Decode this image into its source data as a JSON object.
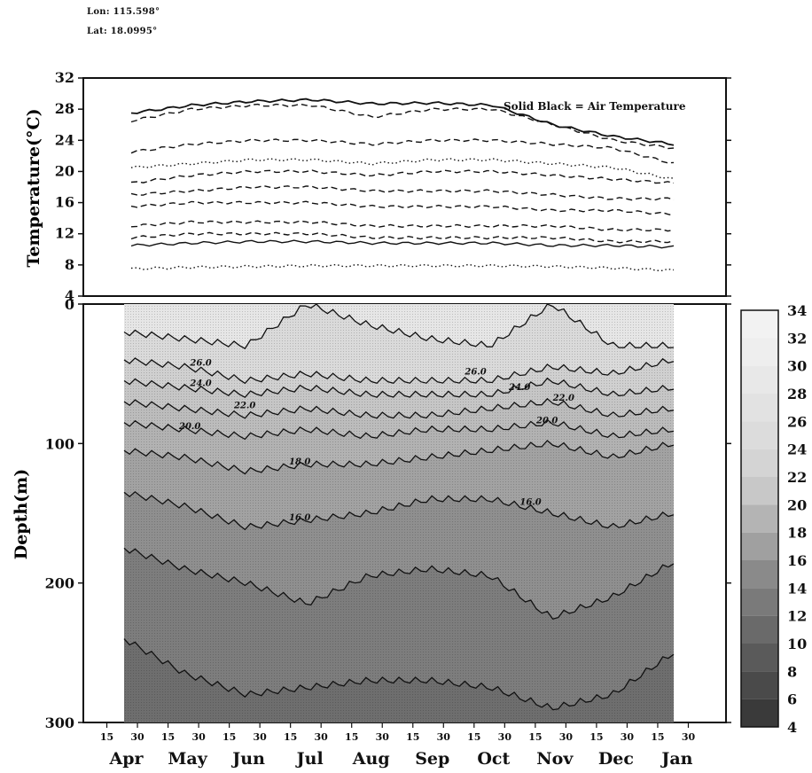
{
  "header": {
    "lon": "Lon: 115.598°",
    "lat": "Lat: 18.0995°"
  },
  "chart_data": [
    {
      "type": "line",
      "panel": "top",
      "ylabel": "Temperature(°C)",
      "yticks": [
        4,
        8,
        12,
        16,
        20,
        24,
        28,
        32
      ],
      "ylim": [
        4,
        32
      ],
      "annotation": "Solid Black = Air Temperature",
      "x_months": [
        "Apr",
        "May",
        "Jun",
        "Jul",
        "Aug",
        "Sep",
        "Oct",
        "Nov",
        "Dec",
        "Jan"
      ],
      "series": [
        {
          "style": "solid",
          "values": [
            27.5,
            28.5,
            29.0,
            29.2,
            28.7,
            28.8,
            28.5,
            26.0,
            24.5,
            23.5
          ]
        },
        {
          "style": "dashed",
          "values": [
            26.5,
            28.0,
            28.5,
            28.5,
            27.0,
            28.0,
            28.0,
            26.0,
            24.0,
            23.0
          ]
        },
        {
          "style": "dashed",
          "values": [
            22.5,
            23.5,
            24.0,
            24.0,
            23.5,
            24.0,
            24.0,
            23.5,
            23.0,
            21.0
          ]
        },
        {
          "style": "dotted",
          "values": [
            20.5,
            21.0,
            21.5,
            21.5,
            21.0,
            21.5,
            21.5,
            21.0,
            20.5,
            19.0
          ]
        },
        {
          "style": "dashed",
          "values": [
            18.5,
            19.5,
            20.0,
            20.0,
            19.5,
            20.0,
            20.0,
            19.5,
            19.0,
            18.5
          ]
        },
        {
          "style": "dashed",
          "values": [
            17.0,
            17.5,
            18.0,
            18.0,
            17.5,
            17.5,
            17.5,
            17.0,
            16.5,
            16.5
          ]
        },
        {
          "style": "dashed",
          "values": [
            15.5,
            16.0,
            16.0,
            16.0,
            15.5,
            15.5,
            15.5,
            15.0,
            15.0,
            14.5
          ]
        },
        {
          "style": "dashed",
          "values": [
            13.0,
            13.5,
            13.5,
            13.5,
            13.0,
            13.0,
            13.0,
            13.0,
            12.5,
            12.5
          ]
        },
        {
          "style": "dashed",
          "values": [
            11.5,
            12.0,
            12.0,
            12.0,
            11.5,
            11.5,
            11.5,
            11.5,
            11.0,
            11.0
          ]
        },
        {
          "style": "solid",
          "values": [
            10.5,
            10.8,
            11.0,
            11.0,
            10.8,
            10.8,
            10.8,
            10.5,
            10.5,
            10.3
          ]
        },
        {
          "style": "dotted",
          "values": [
            7.5,
            7.7,
            7.8,
            7.9,
            7.9,
            7.9,
            7.9,
            7.8,
            7.6,
            7.3
          ]
        }
      ]
    },
    {
      "type": "heatmap",
      "panel": "bottom",
      "ylabel": "Depth(m)",
      "yticks": [
        0,
        100,
        200,
        300
      ],
      "ylim": [
        300,
        0
      ],
      "x_day_ticks": [
        "15",
        "30",
        "15",
        "30",
        "15",
        "30",
        "15",
        "30",
        "15",
        "30",
        "15",
        "30",
        "15",
        "30",
        "15",
        "30",
        "15",
        "30",
        "15",
        "30"
      ],
      "x_months": [
        "Apr",
        "May",
        "Jun",
        "Jul",
        "Aug",
        "Sep",
        "Oct",
        "Nov",
        "Dec",
        "Jan"
      ],
      "colorbar_ticks": [
        34,
        32,
        30,
        28,
        26,
        24,
        22,
        20,
        18,
        16,
        14,
        12,
        10,
        8,
        6,
        4
      ],
      "contour_labels": [
        "26.0",
        "26.0",
        "24.0",
        "24.0",
        "22.0",
        "22.0",
        "20.0",
        "20.0",
        "18.0",
        "16.0",
        "16.0"
      ],
      "isotherms": [
        {
          "value": 28,
          "depths": [
            20,
            25,
            30,
            0,
            15,
            25,
            30,
            0,
            30,
            30
          ]
        },
        {
          "value": 26,
          "depths": [
            40,
            45,
            55,
            50,
            55,
            55,
            55,
            45,
            50,
            40
          ]
        },
        {
          "value": 24,
          "depths": [
            55,
            60,
            65,
            60,
            65,
            65,
            65,
            55,
            65,
            60
          ]
        },
        {
          "value": 22,
          "depths": [
            70,
            75,
            80,
            75,
            80,
            80,
            75,
            70,
            80,
            75
          ]
        },
        {
          "value": 20,
          "depths": [
            85,
            90,
            95,
            90,
            95,
            90,
            90,
            85,
            95,
            90
          ]
        },
        {
          "value": 18,
          "depths": [
            105,
            110,
            120,
            115,
            115,
            110,
            105,
            100,
            110,
            100
          ]
        },
        {
          "value": 16,
          "depths": [
            135,
            145,
            160,
            155,
            150,
            140,
            140,
            150,
            160,
            150
          ]
        },
        {
          "value": 14,
          "depths": [
            175,
            190,
            200,
            215,
            195,
            190,
            195,
            225,
            210,
            185
          ]
        },
        {
          "value": 12,
          "depths": [
            240,
            265,
            280,
            275,
            270,
            270,
            275,
            290,
            280,
            250
          ]
        }
      ]
    }
  ]
}
